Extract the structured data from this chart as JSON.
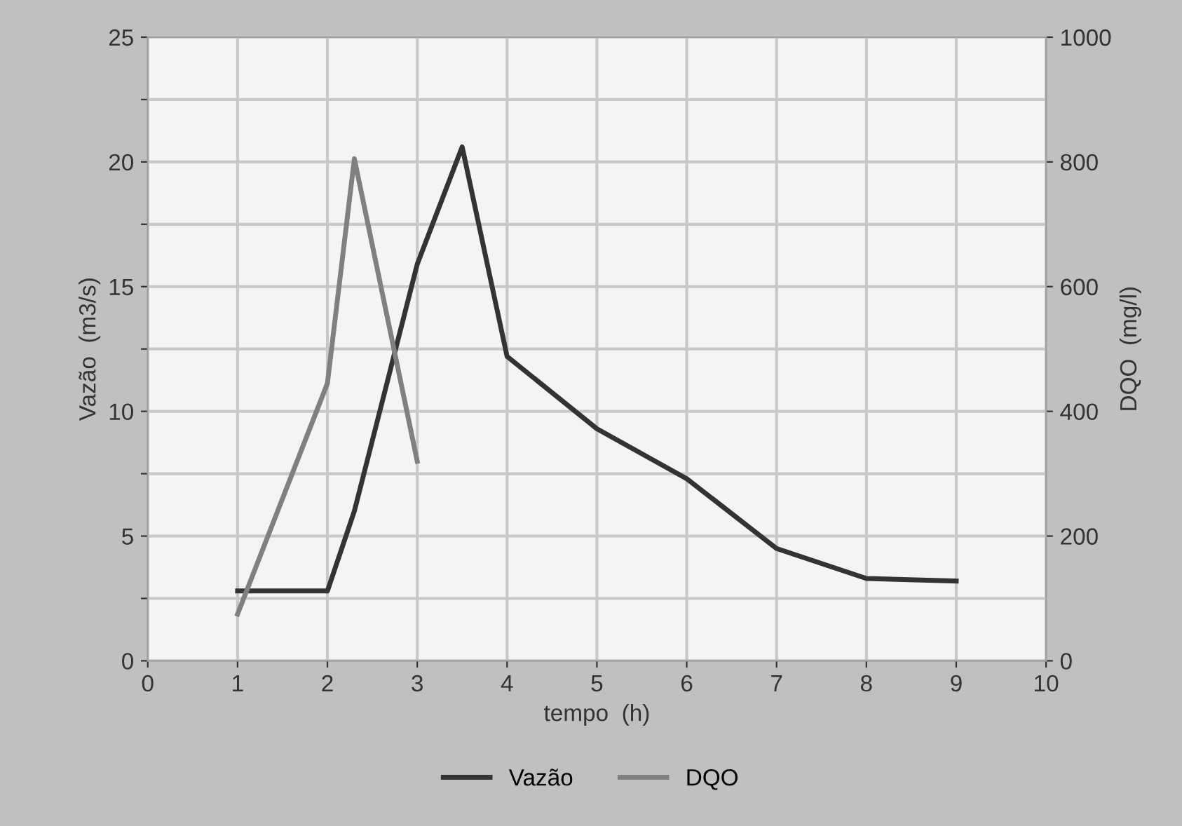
{
  "chart_data": {
    "type": "line",
    "xlabel": "tempo  (h)",
    "ylabel": "Vazão  (m3/s)",
    "y2label": "DQO  (mg/l)",
    "xlim": [
      0,
      10
    ],
    "xticks": [
      0,
      1,
      2,
      3,
      4,
      5,
      6,
      7,
      8,
      9,
      10
    ],
    "ylim": [
      0,
      25
    ],
    "yticks": [
      0,
      {
        "value": 2.5,
        "label": null
      },
      5,
      {
        "value": 7.5,
        "label": null
      },
      10,
      {
        "value": 12.5,
        "label": null
      },
      15,
      {
        "value": 17.5,
        "label": null
      },
      20,
      {
        "value": 22.5,
        "label": null
      },
      25
    ],
    "y2lim": [
      0,
      1000
    ],
    "y2ticks": [
      0,
      200,
      400,
      600,
      800,
      1000
    ],
    "grid": true,
    "legend": "bottom",
    "marker": "none",
    "line_style": "solid",
    "series": [
      {
        "name": "Vazão",
        "color": "#333333",
        "x": [
          1,
          2,
          2.3,
          3,
          3.5,
          4,
          5,
          6,
          7,
          8,
          9
        ],
        "values": [
          2.8,
          2.8,
          6.0,
          15.9,
          20.6,
          12.2,
          9.3,
          7.3,
          4.5,
          3.3,
          3.2
        ]
      },
      {
        "name": "DQO",
        "color": "#808080",
        "axis": "y2",
        "x": [
          1,
          2,
          2.3,
          3
        ],
        "values": [
          75,
          445,
          805,
          320
        ]
      }
    ]
  }
}
